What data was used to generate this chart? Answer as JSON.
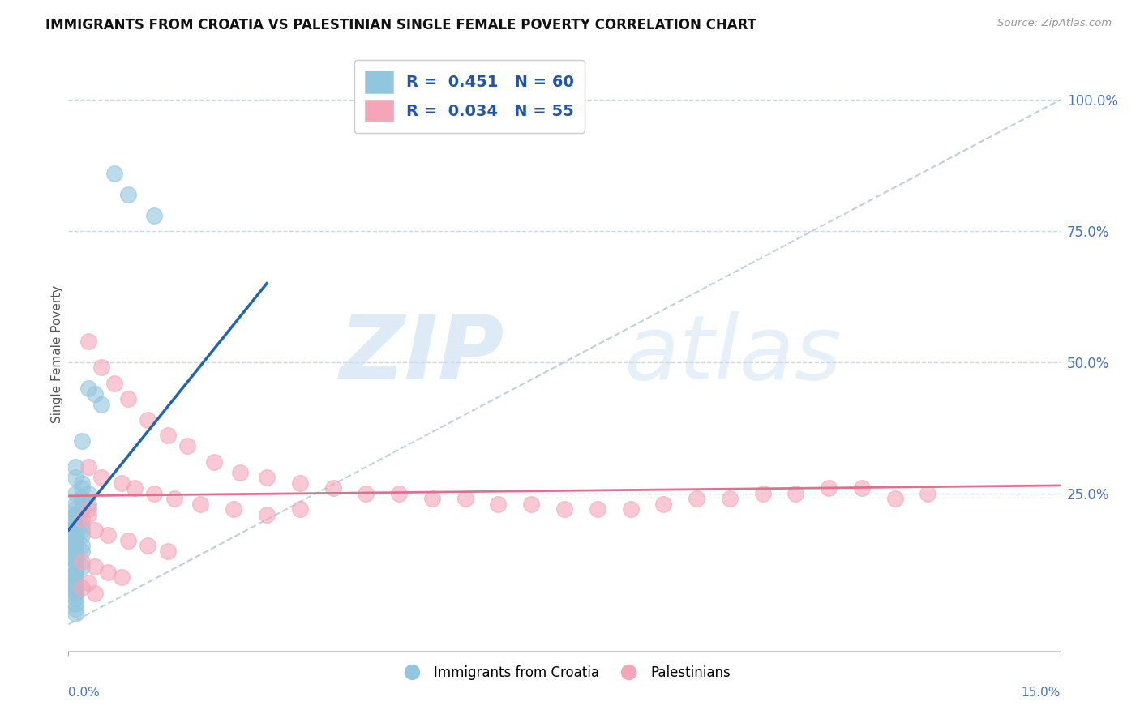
{
  "title": "IMMIGRANTS FROM CROATIA VS PALESTINIAN SINGLE FEMALE POVERTY CORRELATION CHART",
  "source": "Source: ZipAtlas.com",
  "ylabel": "Single Female Poverty",
  "ylabel_right_values": [
    1.0,
    0.75,
    0.5,
    0.25
  ],
  "ylabel_right_labels": [
    "100.0%",
    "75.0%",
    "50.0%",
    "25.0%"
  ],
  "xlim": [
    0.0,
    0.15
  ],
  "ylim": [
    -0.05,
    1.08
  ],
  "blue_color": "#92c5de",
  "pink_color": "#f4a6b8",
  "blue_line_color": "#2166ac",
  "pink_line_color": "#d6604d",
  "diag_line_color": "#b0c4d8",
  "background_color": "#ffffff",
  "grid_color": "#c8d8e8",
  "blue_scatter_x": [
    0.007,
    0.009,
    0.013,
    0.003,
    0.004,
    0.005,
    0.002,
    0.001,
    0.001,
    0.002,
    0.002,
    0.003,
    0.001,
    0.002,
    0.003,
    0.001,
    0.001,
    0.002,
    0.001,
    0.001,
    0.001,
    0.001,
    0.001,
    0.002,
    0.001,
    0.001,
    0.002,
    0.001,
    0.001,
    0.002,
    0.001,
    0.001,
    0.002,
    0.001,
    0.001,
    0.001,
    0.002,
    0.001,
    0.001,
    0.001,
    0.001,
    0.001,
    0.001,
    0.001,
    0.002,
    0.001,
    0.001,
    0.001,
    0.001,
    0.001,
    0.001,
    0.001,
    0.001,
    0.001,
    0.001,
    0.001,
    0.001,
    0.001,
    0.001,
    0.001
  ],
  "blue_scatter_y": [
    0.86,
    0.82,
    0.78,
    0.45,
    0.44,
    0.42,
    0.35,
    0.3,
    0.28,
    0.27,
    0.26,
    0.25,
    0.25,
    0.24,
    0.23,
    0.23,
    0.22,
    0.22,
    0.21,
    0.21,
    0.2,
    0.2,
    0.19,
    0.19,
    0.19,
    0.18,
    0.18,
    0.17,
    0.17,
    0.17,
    0.16,
    0.16,
    0.15,
    0.15,
    0.15,
    0.14,
    0.14,
    0.14,
    0.13,
    0.13,
    0.13,
    0.12,
    0.12,
    0.12,
    0.11,
    0.11,
    0.1,
    0.1,
    0.09,
    0.09,
    0.08,
    0.08,
    0.07,
    0.07,
    0.06,
    0.06,
    0.05,
    0.04,
    0.03,
    0.02
  ],
  "pink_scatter_x": [
    0.003,
    0.005,
    0.007,
    0.009,
    0.012,
    0.015,
    0.018,
    0.022,
    0.026,
    0.03,
    0.035,
    0.04,
    0.045,
    0.05,
    0.055,
    0.06,
    0.065,
    0.07,
    0.075,
    0.08,
    0.085,
    0.09,
    0.095,
    0.1,
    0.105,
    0.11,
    0.115,
    0.12,
    0.125,
    0.13,
    0.003,
    0.005,
    0.008,
    0.01,
    0.013,
    0.016,
    0.02,
    0.025,
    0.03,
    0.035,
    0.004,
    0.006,
    0.009,
    0.012,
    0.015,
    0.002,
    0.004,
    0.006,
    0.008,
    0.003,
    0.002,
    0.003,
    0.003,
    0.002,
    0.004
  ],
  "pink_scatter_y": [
    0.54,
    0.49,
    0.46,
    0.43,
    0.39,
    0.36,
    0.34,
    0.31,
    0.29,
    0.28,
    0.27,
    0.26,
    0.25,
    0.25,
    0.24,
    0.24,
    0.23,
    0.23,
    0.22,
    0.22,
    0.22,
    0.23,
    0.24,
    0.24,
    0.25,
    0.25,
    0.26,
    0.26,
    0.24,
    0.25,
    0.3,
    0.28,
    0.27,
    0.26,
    0.25,
    0.24,
    0.23,
    0.22,
    0.21,
    0.22,
    0.18,
    0.17,
    0.16,
    0.15,
    0.14,
    0.12,
    0.11,
    0.1,
    0.09,
    0.08,
    0.2,
    0.21,
    0.22,
    0.07,
    0.06
  ],
  "blue_trend_x": [
    0.0,
    0.03
  ],
  "blue_trend_y": [
    0.18,
    0.65
  ],
  "pink_trend_x": [
    0.0,
    0.15
  ],
  "pink_trend_y": [
    0.245,
    0.265
  ]
}
